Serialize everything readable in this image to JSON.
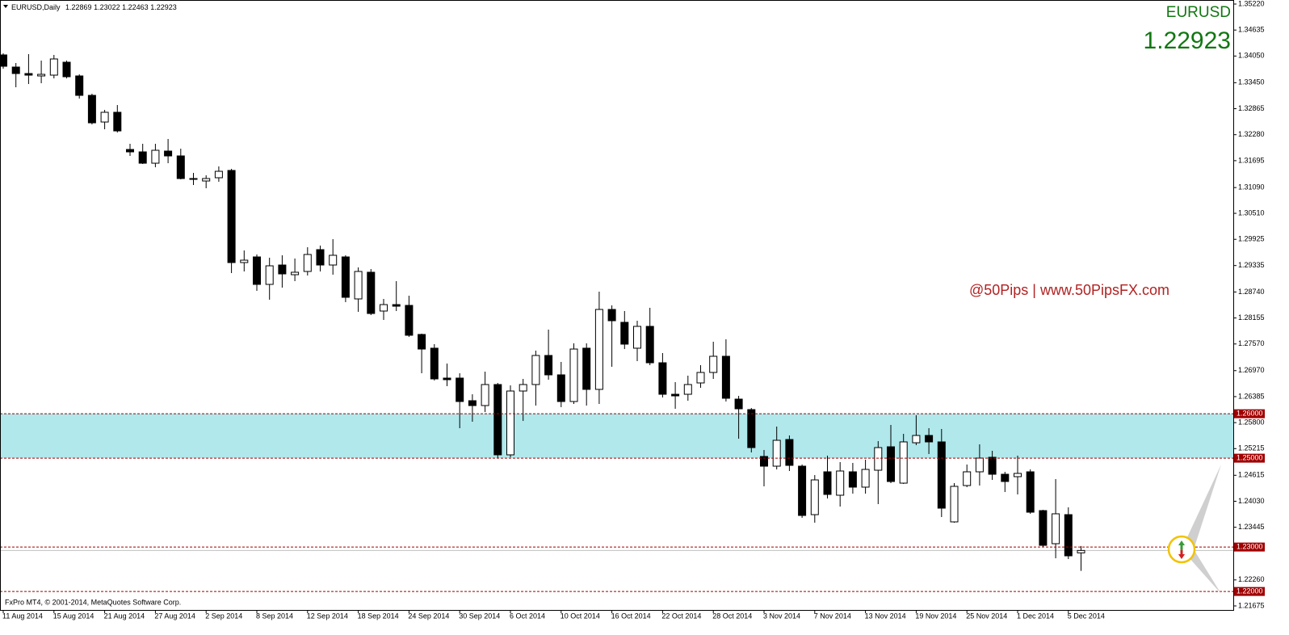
{
  "chart_data": {
    "type": "candlestick",
    "title": "EURUSD,Daily",
    "symbol": "EURUSD",
    "annotation": "@50Pips | www.50PipsFX.com",
    "footer": "FxPro MT4, © 2001-2014, MetaQuotes Software Corp.",
    "categories": [
      "11 Aug 2014",
      null,
      null,
      null,
      "15 Aug 2014",
      null,
      null,
      null,
      "21 Aug 2014",
      null,
      null,
      null,
      "27 Aug 2014",
      null,
      null,
      null,
      "2 Sep 2014",
      null,
      null,
      null,
      "8 Sep 2014",
      null,
      null,
      null,
      "12 Sep 2014",
      null,
      null,
      null,
      "18 Sep 2014",
      null,
      null,
      null,
      "24 Sep 2014",
      null,
      null,
      null,
      "30 Sep 2014",
      null,
      null,
      null,
      "6 Oct 2014",
      null,
      null,
      null,
      "10 Oct 2014",
      null,
      null,
      null,
      "16 Oct 2014",
      null,
      null,
      null,
      "22 Oct 2014",
      null,
      null,
      null,
      "28 Oct 2014",
      null,
      null,
      null,
      "3 Nov 2014",
      null,
      null,
      null,
      "7 Nov 2014",
      null,
      null,
      null,
      "13 Nov 2014",
      null,
      null,
      null,
      "19 Nov 2014",
      null,
      null,
      null,
      "25 Nov 2014",
      null,
      null,
      null,
      "1 Dec 2014",
      null,
      null,
      null,
      "5 Dec 2014",
      null
    ],
    "open": [
      1.34075,
      1.33802,
      1.33656,
      1.33602,
      1.3362,
      1.33911,
      1.33602,
      1.33165,
      1.32565,
      1.32784,
      1.31947,
      1.31893,
      1.31638,
      1.31911,
      1.31802,
      1.31293,
      1.31238,
      1.31311,
      1.31475,
      1.29402,
      1.29529,
      1.28911,
      1.29347,
      1.29129,
      1.29202,
      1.29693,
      1.29347,
      1.29529,
      1.28584,
      1.29184,
      1.28311,
      1.28456,
      1.28438,
      1.27784,
      1.27475,
      1.26802,
      1.26802,
      1.26293,
      1.26184,
      1.26657,
      1.25075,
      1.26511,
      1.26657,
      1.27311,
      1.26875,
      1.26275,
      1.27475,
      1.26548,
      1.28347,
      1.28057,
      1.27475,
      1.27966,
      1.27147,
      1.26438,
      1.26438,
      1.26693,
      1.26929,
      1.27293,
      1.26329,
      1.26093,
      1.25038,
      1.2482,
      1.2542,
      1.2482,
      1.23729,
      1.24693,
      1.24166,
      1.24693,
      1.24348,
      1.24729,
      1.25256,
      1.24438,
      1.25347,
      1.25511,
      1.25366,
      1.23566,
      1.24384,
      1.24693,
      1.2502,
      1.24638,
      1.24584,
      1.24693,
      1.2382,
      1.23075,
      1.23729,
      1.22869
    ],
    "high": [
      1.34111,
      1.33893,
      1.34093,
      1.33948,
      1.34075,
      1.33948,
      1.33638,
      1.33202,
      1.32838,
      1.32947,
      1.32075,
      1.32075,
      1.32075,
      1.32184,
      1.31965,
      1.3142,
      1.31366,
      1.31566,
      1.31511,
      1.29675,
      1.29584,
      1.29511,
      1.29566,
      1.29493,
      1.29747,
      1.29784,
      1.29929,
      1.29566,
      1.29293,
      1.29256,
      1.28584,
      1.28984,
      1.28656,
      1.27802,
      1.27566,
      1.27129,
      1.26911,
      1.26438,
      1.26947,
      1.26693,
      1.26638,
      1.26784,
      1.2742,
      1.27893,
      1.27166,
      1.27584,
      1.27584,
      1.28747,
      1.28438,
      1.28311,
      1.28093,
      1.28384,
      1.27366,
      1.26711,
      1.26857,
      1.27093,
      1.2762,
      1.27675,
      1.26402,
      1.26129,
      1.25184,
      1.25711,
      1.25511,
      1.24857,
      1.2462,
      1.25057,
      1.24911,
      1.24893,
      1.24966,
      1.25384,
      1.25747,
      1.25547,
      1.25966,
      1.25675,
      1.25657,
      1.24438,
      1.24857,
      1.25311,
      1.25166,
      1.24693,
      1.25057,
      1.24747,
      1.23838,
      1.24529,
      1.23893,
      1.23022
    ],
    "low": [
      1.33765,
      1.33347,
      1.3342,
      1.33438,
      1.33547,
      1.33547,
      1.33093,
      1.32511,
      1.32402,
      1.32329,
      1.31802,
      1.3162,
      1.31547,
      1.31638,
      1.31275,
      1.31147,
      1.31075,
      1.3122,
      1.29166,
      1.29202,
      1.28766,
      1.28566,
      1.28838,
      1.28984,
      1.29111,
      1.29202,
      1.29129,
      1.28511,
      1.28293,
      1.2822,
      1.28111,
      1.28311,
      1.27729,
      1.26911,
      1.26748,
      1.2662,
      1.25675,
      1.2582,
      1.26038,
      1.25002,
      1.2502,
      1.25838,
      1.26184,
      1.26766,
      1.26148,
      1.2622,
      1.26184,
      1.2622,
      1.27057,
      1.27456,
      1.27184,
      1.27093,
      1.26366,
      1.26111,
      1.26293,
      1.26584,
      1.26784,
      1.26275,
      1.25438,
      1.25129,
      1.24366,
      1.24747,
      1.24711,
      1.23657,
      1.23548,
      1.24093,
      1.23911,
      1.24202,
      1.24202,
      1.23966,
      1.24438,
      1.2442,
      1.25293,
      1.25093,
      1.23675,
      1.23548,
      1.24348,
      1.24384,
      1.24511,
      1.24238,
      1.24184,
      1.23748,
      1.23002,
      1.22747,
      1.22729,
      1.22463
    ],
    "close": [
      1.3382,
      1.33656,
      1.3362,
      1.33638,
      1.33984,
      1.33584,
      1.33165,
      1.32547,
      1.32784,
      1.32365,
      1.31893,
      1.31638,
      1.31929,
      1.31802,
      1.31293,
      1.31275,
      1.31293,
      1.31456,
      1.29402,
      1.29456,
      1.28911,
      1.29329,
      1.29147,
      1.29184,
      1.29584,
      1.29347,
      1.29566,
      1.2862,
      1.29202,
      1.28256,
      1.28456,
      1.2842,
      1.27766,
      1.27456,
      1.26784,
      1.26766,
      1.26275,
      1.26184,
      1.26657,
      1.25075,
      1.26511,
      1.26657,
      1.27311,
      1.26875,
      1.26275,
      1.27456,
      1.26548,
      1.28347,
      1.28093,
      1.27566,
      1.27966,
      1.27147,
      1.26438,
      1.26402,
      1.26657,
      1.26929,
      1.27293,
      1.26348,
      1.26111,
      1.25238,
      1.2482,
      1.25402,
      1.24838,
      1.23711,
      1.24511,
      1.24184,
      1.24711,
      1.24348,
      1.24747,
      1.25238,
      1.24475,
      1.25366,
      1.25511,
      1.25366,
      1.23875,
      1.24366,
      1.24693,
      1.25002,
      1.24638,
      1.24475,
      1.24657,
      1.23784,
      1.23038,
      1.23748,
      1.22802,
      1.22923
    ],
    "bull_color": "#ffffff",
    "bear_color": "#000000",
    "ylim": [
      1.21584,
      1.35311
    ],
    "yticks": [
      {
        "value": 1.3522,
        "label": "1.35220"
      },
      1.34635,
      {
        "value": 1.3405,
        "label": "1.34050"
      },
      {
        "value": 1.3345,
        "label": "1.33450"
      },
      1.32865,
      {
        "value": 1.3228,
        "label": "1.32280"
      },
      1.31695,
      {
        "value": 1.3109,
        "label": "1.31090"
      },
      {
        "value": 1.3051,
        "label": "1.30510"
      },
      1.29925,
      1.29335,
      {
        "value": 1.2874,
        "label": "1.28740"
      },
      1.28155,
      {
        "value": 1.2757,
        "label": "1.27570"
      },
      {
        "value": 1.2697,
        "label": "1.26970"
      },
      1.26385,
      {
        "value": 1.258,
        "label": "1.25800"
      },
      1.25215,
      1.24615,
      {
        "value": 1.2403,
        "label": "1.24030"
      },
      1.23445,
      {
        "value": 1.2226,
        "label": "1.22260"
      },
      1.21675
    ],
    "levels": [
      {
        "value": 1.26,
        "label": "1.26000"
      },
      {
        "value": 1.25,
        "label": "1.25000"
      },
      {
        "value": 1.23,
        "label": "1.23000"
      },
      {
        "value": 1.22,
        "label": "1.22000"
      }
    ],
    "zone_color": "#b0e8ec",
    "level_color": "#a00000"
  }
}
